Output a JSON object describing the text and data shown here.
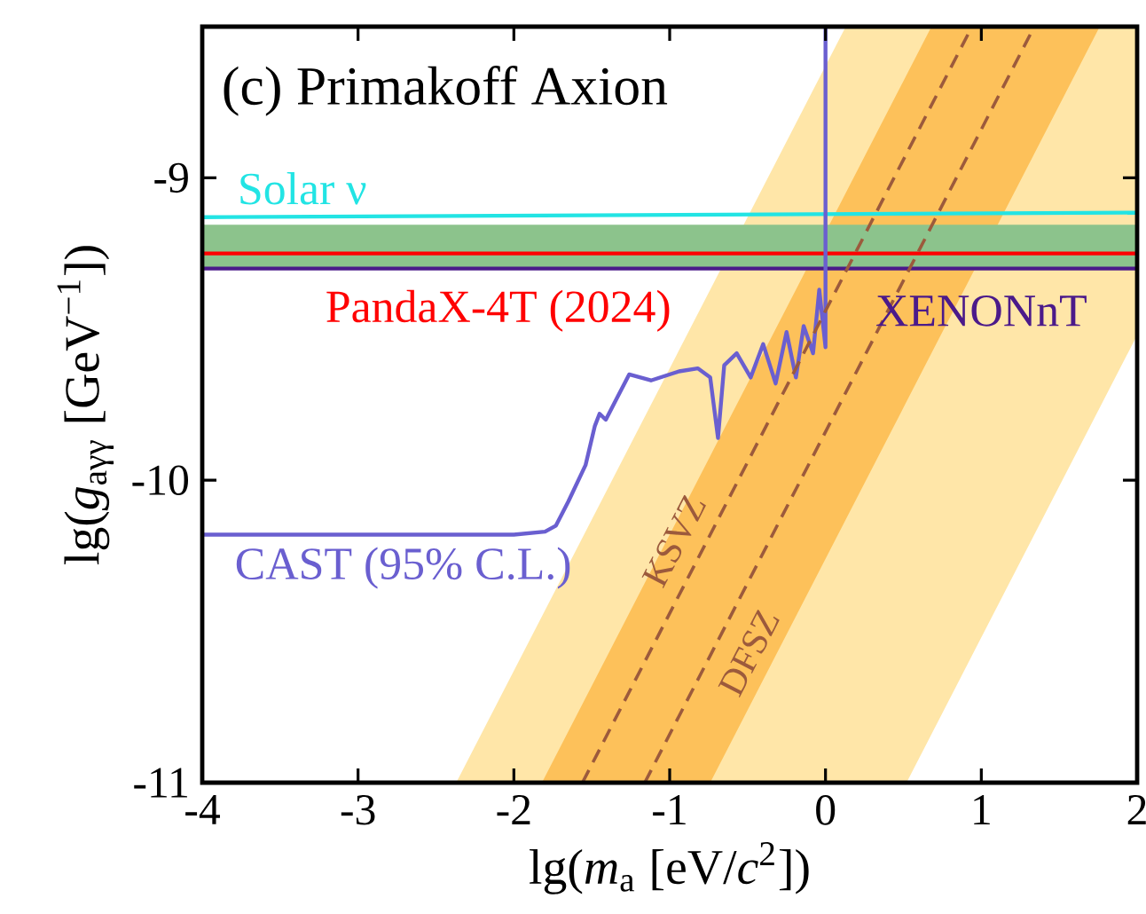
{
  "chart_data": {
    "type": "line",
    "title": "(c) Primakoff Axion",
    "xlabel": "lg(*m*$_{a}$ [eV/*c*$^{2}$])",
    "ylabel": "lg(*g*$_{aγγ}$ [GeV$^{−1}$])",
    "xlim": [
      -4,
      2
    ],
    "ylim": [
      -11,
      -8.5
    ],
    "xticks": [
      -4,
      -3,
      -2,
      -1,
      0,
      1,
      2
    ],
    "yticks": [
      -11,
      -10,
      -9
    ],
    "grid": false,
    "bands": [
      {
        "axis": "y",
        "from": -9.3,
        "to": -9.155,
        "color": "#8cc38c"
      }
    ],
    "series": [
      {
        "name": "Solar ν",
        "color": "#22e4e4",
        "x": [
          -4,
          2
        ],
        "values": [
          -9.13,
          -9.115
        ]
      },
      {
        "name": "PandaX-4T (2024)",
        "color": "#ff0000",
        "x": [
          -4,
          2
        ],
        "values": [
          -9.25,
          -9.25
        ]
      },
      {
        "name": "XENONnT",
        "color": "#4b1a8a",
        "x": [
          -4,
          2
        ],
        "values": [
          -9.3,
          -9.3
        ]
      },
      {
        "name": "CAST (95% C.L.)",
        "color": "#6a5fd0",
        "x": [
          -4,
          -2.0,
          -1.8,
          -1.73,
          -1.65,
          -1.54,
          -1.48,
          -1.45,
          -1.41,
          -1.35,
          -1.26,
          -1.12,
          -0.94,
          -0.82,
          -0.74,
          -0.69,
          -0.65,
          -0.57,
          -0.48,
          -0.4,
          -0.32,
          -0.25,
          -0.19,
          -0.14,
          -0.08,
          -0.04,
          0.0,
          0.0
        ],
        "values": [
          -10.18,
          -10.18,
          -10.17,
          -10.15,
          -10.07,
          -9.95,
          -9.82,
          -9.78,
          -9.8,
          -9.74,
          -9.65,
          -9.67,
          -9.64,
          -9.63,
          -9.66,
          -9.86,
          -9.62,
          -9.58,
          -9.66,
          -9.55,
          -9.68,
          -9.51,
          -9.66,
          -9.49,
          -9.58,
          -9.37,
          -9.56,
          -8.5
        ]
      },
      {
        "name": "KSVZ",
        "color": "#9c5a3c",
        "line_style": "dashed",
        "x": [
          -2.37,
          -1.56,
          0.13,
          0.52,
          0.94,
          2
        ],
        "values": [
          null,
          -11,
          -9.31,
          -8.92,
          -8.5,
          null
        ],
        "upper": [
          -11,
          -10.19,
          -8.5,
          -8.5,
          -8.5,
          -8.5
        ],
        "lower": [
          -11,
          -11,
          -11,
          -11,
          -10.58,
          -9.52
        ]
      },
      {
        "name": "DFSZ",
        "color": "#9c5a3c",
        "line_style": "dashed",
        "x": [
          -1.82,
          -1.16,
          -0.74,
          0.68,
          1.34,
          1.76
        ],
        "values": [
          null,
          -11,
          -10.58,
          -9.16,
          -8.5,
          null
        ],
        "upper": [
          -11,
          -10.34,
          -9.92,
          -8.5,
          -8.5,
          -8.5
        ],
        "lower": [
          -11,
          -11,
          -11,
          -9.58,
          -8.92,
          -8.5
        ]
      }
    ]
  }
}
